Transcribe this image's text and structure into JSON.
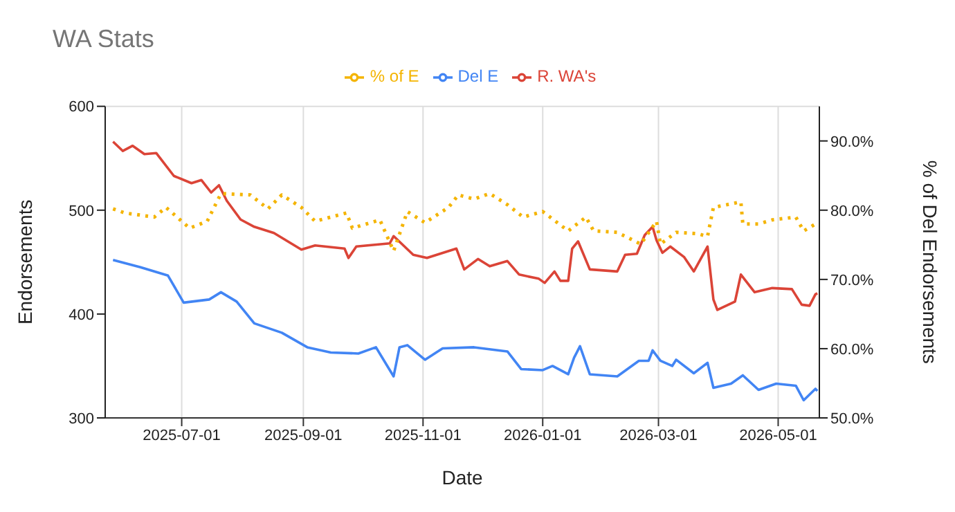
{
  "chart_data": {
    "type": "line",
    "title": "WA Stats",
    "xlabel": "Date",
    "ylabel": "Endorsements",
    "y2label": "% of Del Endorsements",
    "xlim": [
      "2025-05-23",
      "2026-05-22"
    ],
    "xticks": [
      "2025-07-01",
      "2025-09-01",
      "2025-11-01",
      "2026-01-01",
      "2026-03-01",
      "2026-05-01"
    ],
    "ylim": [
      300,
      600
    ],
    "yticks": [
      300,
      400,
      500,
      600
    ],
    "y2lim": [
      50,
      95
    ],
    "y2ticks": [
      {
        "value": 50,
        "label": "50.0%"
      },
      {
        "value": 60,
        "label": "60.0%"
      },
      {
        "value": 70,
        "label": "70.0%"
      },
      {
        "value": 80,
        "label": "80.0%"
      },
      {
        "value": 90,
        "label": "90.0%"
      }
    ],
    "grid": true,
    "legend": "top",
    "marker": "none",
    "series": [
      {
        "name": "Del E",
        "color": "#4285f4",
        "line_style": "solid",
        "x": [
          "2025-05-27",
          "2025-06-10",
          "2025-06-24",
          "2025-07-02",
          "2025-07-15",
          "2025-07-21",
          "2025-07-29",
          "2025-08-07",
          "2025-08-21",
          "2025-09-03",
          "2025-09-15",
          "2025-09-29",
          "2025-10-08",
          "2025-10-17",
          "2025-10-20",
          "2025-10-24",
          "2025-11-02",
          "2025-11-11",
          "2025-11-27",
          "2025-12-14",
          "2025-12-21",
          "2026-01-01",
          "2026-01-06",
          "2026-01-14",
          "2026-01-17",
          "2026-01-20",
          "2026-01-25",
          "2026-02-08",
          "2026-02-19",
          "2026-02-24",
          "2026-02-26",
          "2026-03-02",
          "2026-03-08",
          "2026-03-10",
          "2026-03-19",
          "2026-03-26",
          "2026-03-29",
          "2026-04-07",
          "2026-04-13",
          "2026-04-21",
          "2026-04-30",
          "2026-05-10",
          "2026-05-14",
          "2026-05-20",
          "2026-05-21"
        ],
        "values": [
          452,
          445,
          437,
          411,
          414,
          421,
          412,
          391,
          382,
          368,
          363,
          362,
          368,
          340,
          368,
          370,
          356,
          367,
          368,
          364,
          347,
          346,
          350,
          342,
          358,
          369,
          342,
          340,
          355,
          355,
          365,
          355,
          350,
          356,
          343,
          353,
          329,
          333,
          341,
          327,
          333,
          331,
          317,
          328,
          326
        ]
      },
      {
        "name": "R. WA's",
        "color": "#db4437",
        "line_style": "solid",
        "x": [
          "2025-05-27",
          "2025-06-01",
          "2025-06-06",
          "2025-06-12",
          "2025-06-18",
          "2025-06-27",
          "2025-07-06",
          "2025-07-11",
          "2025-07-16",
          "2025-07-20",
          "2025-07-24",
          "2025-07-31",
          "2025-08-07",
          "2025-08-17",
          "2025-08-24",
          "2025-08-31",
          "2025-09-07",
          "2025-09-22",
          "2025-09-24",
          "2025-09-28",
          "2025-10-15",
          "2025-10-17",
          "2025-10-27",
          "2025-11-03",
          "2025-11-18",
          "2025-11-22",
          "2025-11-29",
          "2025-12-05",
          "2025-12-14",
          "2025-12-20",
          "2025-12-30",
          "2026-01-02",
          "2026-01-07",
          "2026-01-10",
          "2026-01-14",
          "2026-01-16",
          "2026-01-19",
          "2026-01-25",
          "2026-02-08",
          "2026-02-12",
          "2026-02-18",
          "2026-02-22",
          "2026-02-26",
          "2026-02-28",
          "2026-03-03",
          "2026-03-07",
          "2026-03-14",
          "2026-03-19",
          "2026-03-26",
          "2026-03-29",
          "2026-03-31",
          "2026-04-09",
          "2026-04-12",
          "2026-04-19",
          "2026-04-28",
          "2026-05-08",
          "2026-05-13",
          "2026-05-17",
          "2026-05-20",
          "2026-05-21"
        ],
        "values": [
          566,
          557,
          562,
          554,
          555,
          533,
          526,
          529,
          517,
          524,
          509,
          491,
          484,
          478,
          470,
          462,
          466,
          463,
          454,
          465,
          468,
          475,
          457,
          454,
          463,
          443,
          453,
          446,
          451,
          438,
          434,
          430,
          441,
          432,
          432,
          463,
          470,
          443,
          441,
          457,
          458,
          476,
          484,
          471,
          459,
          465,
          455,
          441,
          465,
          414,
          404,
          412,
          438,
          421,
          425,
          424,
          409,
          408,
          419,
          420
        ]
      },
      {
        "name": "% of E",
        "color": "#f4b400",
        "line_style": "dotted",
        "axis": "y2",
        "x": [
          "2025-05-27",
          "2025-06-02",
          "2025-06-17",
          "2025-06-23",
          "2025-07-05",
          "2025-07-14",
          "2025-07-21",
          "2025-08-05",
          "2025-08-14",
          "2025-08-21",
          "2025-08-31",
          "2025-09-07",
          "2025-09-23",
          "2025-09-26",
          "2025-10-10",
          "2025-10-17",
          "2025-10-24",
          "2025-11-02",
          "2025-11-14",
          "2025-11-19",
          "2025-11-27",
          "2025-12-05",
          "2025-12-14",
          "2025-12-22",
          "2026-01-01",
          "2026-01-14",
          "2026-01-23",
          "2026-01-27",
          "2026-02-08",
          "2026-02-20",
          "2026-02-28",
          "2026-03-02",
          "2026-03-10",
          "2026-03-21",
          "2026-03-26",
          "2026-03-29",
          "2026-04-12",
          "2026-04-13",
          "2026-04-21",
          "2026-04-28",
          "2026-05-10",
          "2026-05-14",
          "2026-05-20"
        ],
        "values": [
          80.2,
          79.6,
          79.0,
          80.4,
          77.4,
          78.4,
          82.4,
          82.2,
          80.2,
          82.2,
          80.4,
          78.4,
          79.6,
          77.4,
          78.6,
          74.1,
          79.8,
          78.2,
          80.4,
          82.2,
          81.6,
          82.4,
          80.8,
          79.0,
          79.8,
          77.0,
          79.0,
          77.0,
          76.8,
          75.1,
          78.4,
          75.1,
          76.8,
          76.6,
          76.2,
          80.4,
          81.2,
          78.0,
          78.0,
          78.6,
          79.0,
          77.0,
          78.0
        ]
      }
    ]
  }
}
